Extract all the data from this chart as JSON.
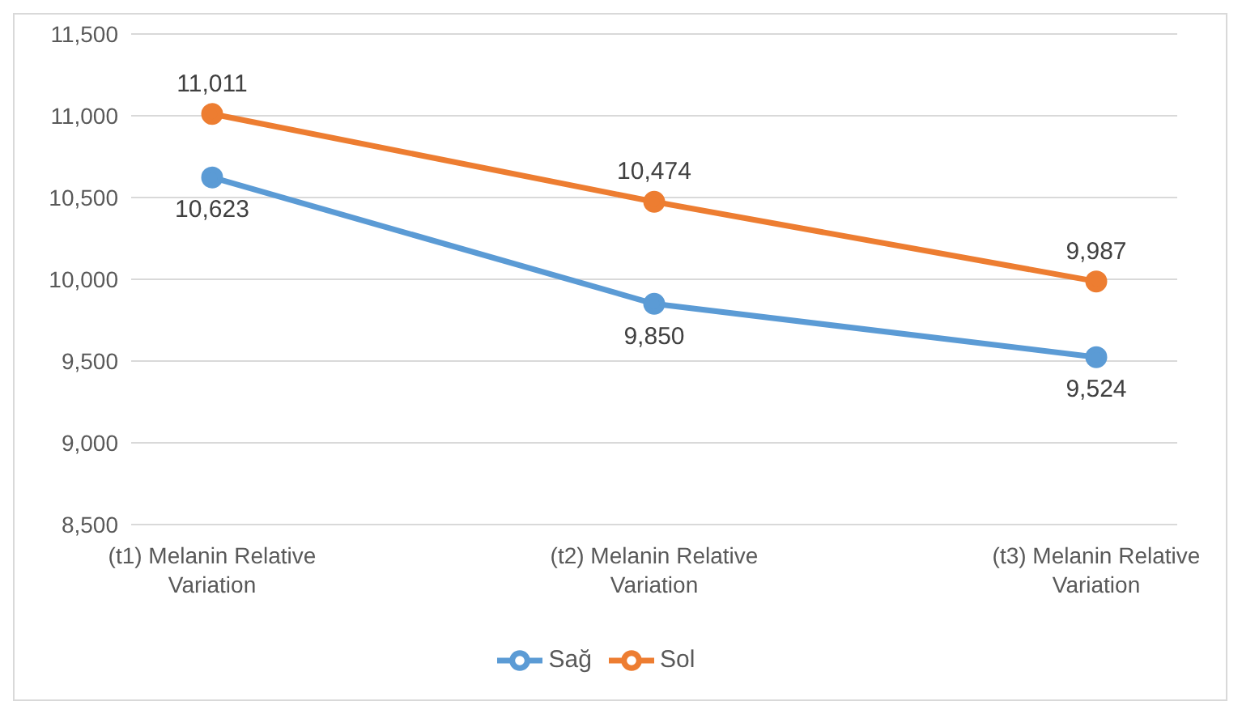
{
  "chart_data": {
    "type": "line",
    "categories": [
      "(t1) Melanin Relative Variation",
      "(t2) Melanin Relative Variation",
      "(t3) Melanin Relative Variation"
    ],
    "series": [
      {
        "name": "Sağ",
        "color": "#5b9bd5",
        "values": [
          10623,
          9850,
          9524
        ],
        "value_labels": [
          "10,623",
          "9,850",
          "9,524"
        ]
      },
      {
        "name": "Sol",
        "color": "#ed7d31",
        "values": [
          11011,
          10474,
          9987
        ],
        "value_labels": [
          "11,011",
          "10,474",
          "9,987"
        ]
      }
    ],
    "ylim": [
      8500,
      11500
    ],
    "yticks": [
      {
        "value": 8500,
        "label": "8,500"
      },
      {
        "value": 9000,
        "label": "9,000"
      },
      {
        "value": 9500,
        "label": "9,500"
      },
      {
        "value": 10000,
        "label": "10,000"
      },
      {
        "value": 10500,
        "label": "10,500"
      },
      {
        "value": 11000,
        "label": "11,000"
      },
      {
        "value": 11500,
        "label": "11,500"
      }
    ],
    "grid": "y",
    "legend": "bottom",
    "marker": "circle",
    "line_style": "solid"
  }
}
